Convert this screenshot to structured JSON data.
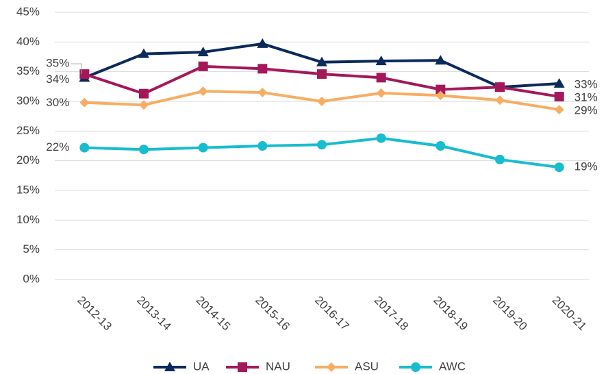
{
  "chart_data": {
    "type": "line",
    "categories": [
      "2012-13",
      "2013-14",
      "2014-15",
      "2015-16",
      "2016-17",
      "2017-18",
      "2018-19",
      "2019-20",
      "2020-21"
    ],
    "series": [
      {
        "name": "UA",
        "color": "#0b2a5b",
        "marker": "triangle",
        "values": [
          34.0,
          38.0,
          38.3,
          39.7,
          36.6,
          36.8,
          36.9,
          32.4,
          33.0
        ],
        "value_labels": [
          "34%",
          null,
          null,
          null,
          null,
          null,
          null,
          null,
          "33%"
        ]
      },
      {
        "name": "NAU",
        "color": "#a4185a",
        "marker": "square",
        "values": [
          34.6,
          31.3,
          35.9,
          35.5,
          34.6,
          34.0,
          32.0,
          32.4,
          30.8
        ],
        "value_labels": [
          "35%",
          null,
          null,
          null,
          null,
          null,
          null,
          null,
          "31%"
        ]
      },
      {
        "name": "ASU",
        "color": "#f7ad64",
        "marker": "diamond",
        "values": [
          29.8,
          29.4,
          31.7,
          31.5,
          30.0,
          31.4,
          31.0,
          30.2,
          28.6
        ],
        "value_labels": [
          "30%",
          null,
          null,
          null,
          null,
          null,
          null,
          null,
          "29%"
        ]
      },
      {
        "name": "AWC",
        "color": "#19bccf",
        "marker": "circle",
        "values": [
          22.2,
          21.9,
          22.2,
          22.5,
          22.7,
          23.8,
          22.5,
          20.2,
          18.9
        ],
        "value_labels": [
          "22%",
          null,
          null,
          null,
          null,
          null,
          null,
          null,
          "19%"
        ]
      }
    ],
    "ylim": [
      0,
      45
    ],
    "yticks": [
      {
        "value": 0,
        "label": "0%"
      },
      {
        "value": 5,
        "label": "5%"
      },
      {
        "value": 10,
        "label": "10%"
      },
      {
        "value": 15,
        "label": "15%"
      },
      {
        "value": 20,
        "label": "20%"
      },
      {
        "value": 25,
        "label": "25%"
      },
      {
        "value": 30,
        "label": "30%"
      },
      {
        "value": 35,
        "label": "35%"
      },
      {
        "value": 40,
        "label": "40%"
      },
      {
        "value": 45,
        "label": "45%"
      }
    ],
    "grid": true,
    "legend": "bottom"
  }
}
